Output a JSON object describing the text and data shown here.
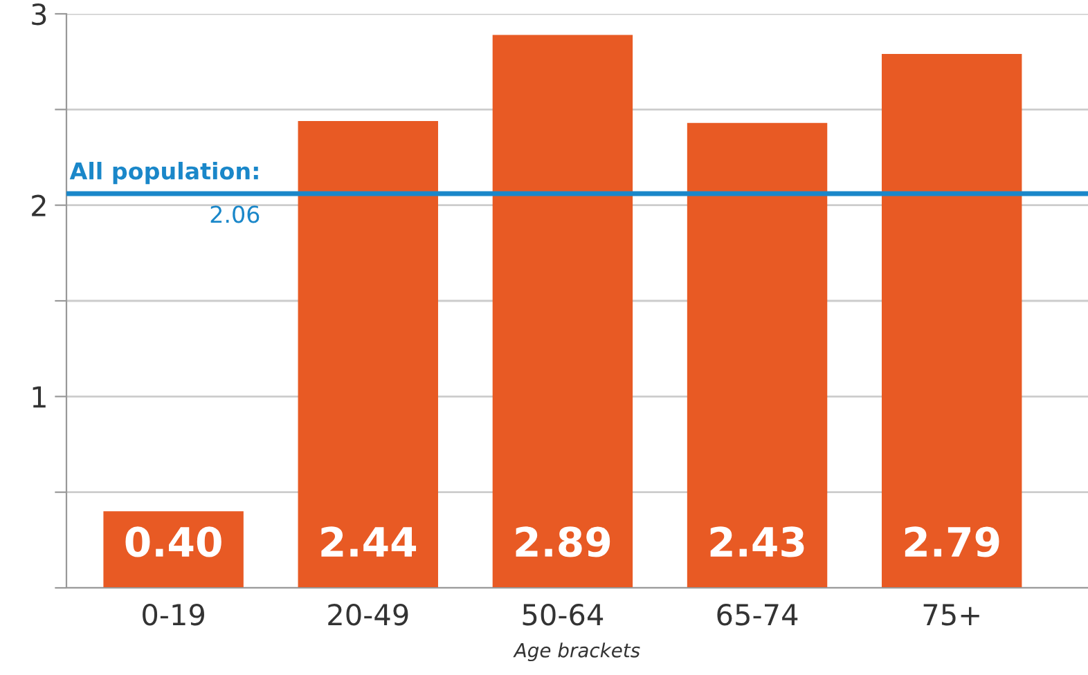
{
  "chart_data": {
    "type": "bar",
    "xlabel": "Age brackets",
    "categories": [
      "0-19",
      "20-49",
      "50-64",
      "65-74",
      "75+"
    ],
    "values": [
      0.4,
      2.44,
      2.89,
      2.43,
      2.79
    ],
    "value_labels": [
      "0.40",
      "2.44",
      "2.89",
      "2.43",
      "2.79"
    ],
    "color": "#e85a24",
    "ylim": [
      0,
      3
    ],
    "yticks": [
      {
        "value": 0,
        "label": null
      },
      {
        "value": 0.5,
        "label": null
      },
      1,
      {
        "value": 1.5,
        "label": null
      },
      2,
      {
        "value": 2.5,
        "label": null
      },
      3
    ],
    "grid": "y",
    "legend": false,
    "ref_lines": [
      {
        "axis": "y",
        "value": 2.06,
        "label": "All population:\n2.06",
        "color": "#1a87c9",
        "line_style": "solid"
      }
    ]
  }
}
